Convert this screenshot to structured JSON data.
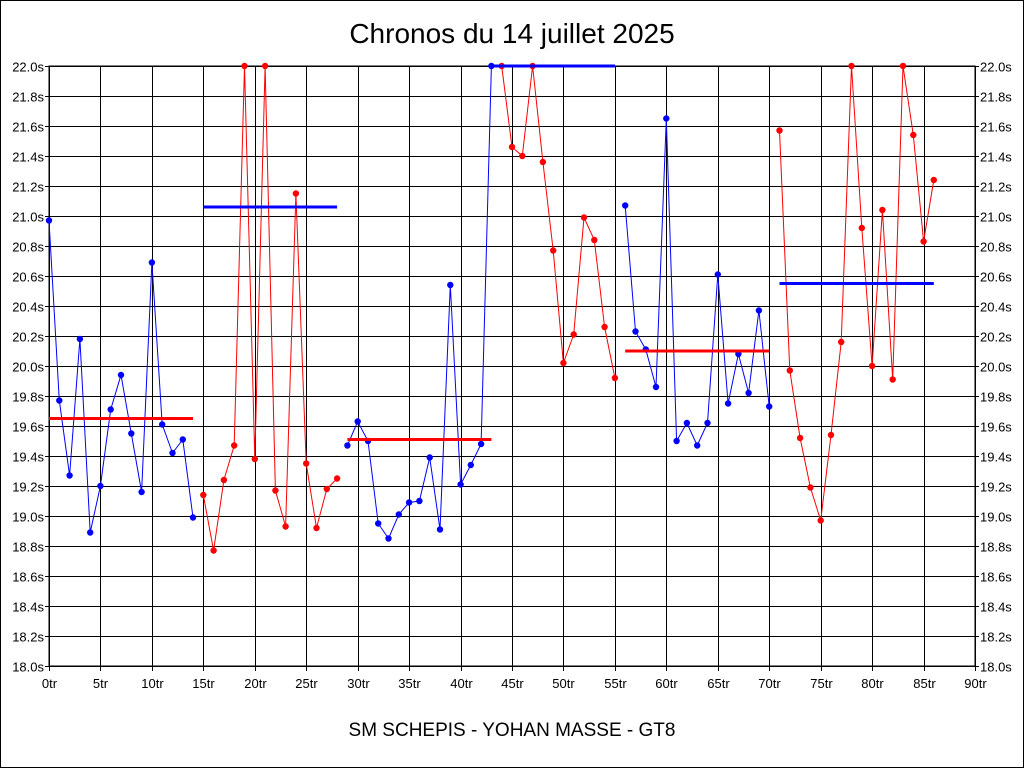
{
  "chart_data": {
    "type": "line",
    "title": "Chronos du 14 juillet 2025",
    "subtitle": "SM SCHEPIS - YOHAN MASSE - GT8",
    "xlim": [
      0,
      90
    ],
    "ylim": [
      18.0,
      22.0
    ],
    "grid": true,
    "x_ticks": [
      0,
      5,
      10,
      15,
      20,
      25,
      30,
      35,
      40,
      45,
      50,
      55,
      60,
      65,
      70,
      75,
      80,
      85,
      90
    ],
    "x_tick_labels": [
      "0tr",
      "5tr",
      "10tr",
      "15tr",
      "20tr",
      "25tr",
      "30tr",
      "35tr",
      "40tr",
      "45tr",
      "50tr",
      "55tr",
      "60tr",
      "65tr",
      "70tr",
      "75tr",
      "80tr",
      "85tr",
      "90tr"
    ],
    "y_ticks": [
      18.0,
      18.2,
      18.4,
      18.6,
      18.8,
      19.0,
      19.2,
      19.4,
      19.6,
      19.8,
      20.0,
      20.2,
      20.4,
      20.6,
      20.8,
      21.0,
      21.2,
      21.4,
      21.6,
      21.8,
      22.0
    ],
    "y_tick_labels": [
      "18.0s",
      "18.2s",
      "18.4s",
      "18.6s",
      "18.8s",
      "19.0s",
      "19.2s",
      "19.4s",
      "19.6s",
      "19.8s",
      "20.0s",
      "20.2s",
      "20.4s",
      "20.6s",
      "20.8s",
      "21.0s",
      "21.2s",
      "21.4s",
      "21.6s",
      "21.8s",
      "22.0s"
    ],
    "stints": [
      {
        "color": "#0000ff",
        "avg_color": "#ff0000",
        "x": [
          0,
          1,
          2,
          3,
          4,
          5,
          6,
          7,
          8,
          9,
          10,
          11,
          12,
          13,
          14
        ],
        "y": [
          20.97,
          19.77,
          19.27,
          20.18,
          18.89,
          19.2,
          19.71,
          19.94,
          19.55,
          19.16,
          20.69,
          19.61,
          19.42,
          19.51,
          18.99
        ],
        "avg": 19.65,
        "avg_range": [
          0,
          14
        ]
      },
      {
        "color": "#ff0000",
        "avg_color": "#0000ff",
        "x": [
          15,
          16,
          17,
          18,
          19,
          20,
          21,
          22,
          23,
          24,
          25,
          26,
          27,
          28
        ],
        "y": [
          19.14,
          18.77,
          19.24,
          19.47,
          22.0,
          19.38,
          22.0,
          19.17,
          18.93,
          21.15,
          19.35,
          18.92,
          19.18,
          19.25
        ],
        "avg": 21.06,
        "avg_range": [
          15,
          28
        ]
      },
      {
        "color": "#0000ff",
        "avg_color": "#ff0000",
        "x": [
          29,
          30,
          31,
          32,
          33,
          34,
          35,
          36,
          37,
          38,
          39,
          40,
          41,
          42,
          43
        ],
        "y": [
          19.47,
          19.63,
          19.5,
          18.95,
          18.85,
          19.01,
          19.09,
          19.1,
          19.39,
          18.91,
          20.54,
          19.21,
          19.34,
          19.48,
          22.0
        ],
        "avg": 19.51,
        "avg_range": [
          29,
          43
        ]
      },
      {
        "color": "#ff0000",
        "avg_color": "#0000ff",
        "x": [
          44,
          45,
          46,
          47,
          48,
          49,
          50,
          51,
          52,
          53,
          54,
          55
        ],
        "y": [
          22.0,
          21.46,
          21.4,
          22.0,
          21.36,
          20.77,
          20.02,
          20.21,
          20.99,
          20.84,
          20.26,
          19.92
        ],
        "avg": 22.0,
        "avg_range": [
          43,
          55
        ]
      },
      {
        "color": "#0000ff",
        "avg_color": "#ff0000",
        "x": [
          56,
          57,
          58,
          59,
          60,
          61,
          62,
          63,
          64,
          65,
          66,
          67,
          68,
          69,
          70
        ],
        "y": [
          21.07,
          20.23,
          20.11,
          19.86,
          21.65,
          19.5,
          19.62,
          19.47,
          19.62,
          20.61,
          19.75,
          20.08,
          19.82,
          20.37,
          19.73
        ],
        "avg": 20.1,
        "avg_range": [
          56,
          70
        ]
      },
      {
        "color": "#ff0000",
        "avg_color": "#0000ff",
        "x": [
          71,
          72,
          73,
          74,
          75,
          76,
          77,
          78,
          79,
          80,
          81,
          82,
          83,
          84,
          85,
          86
        ],
        "y": [
          21.57,
          19.97,
          19.52,
          19.19,
          18.97,
          19.54,
          20.16,
          22.0,
          20.92,
          20.0,
          21.04,
          19.91,
          22.0,
          21.54,
          20.83,
          21.24
        ],
        "avg": 20.55,
        "avg_range": [
          71,
          86
        ]
      }
    ]
  }
}
